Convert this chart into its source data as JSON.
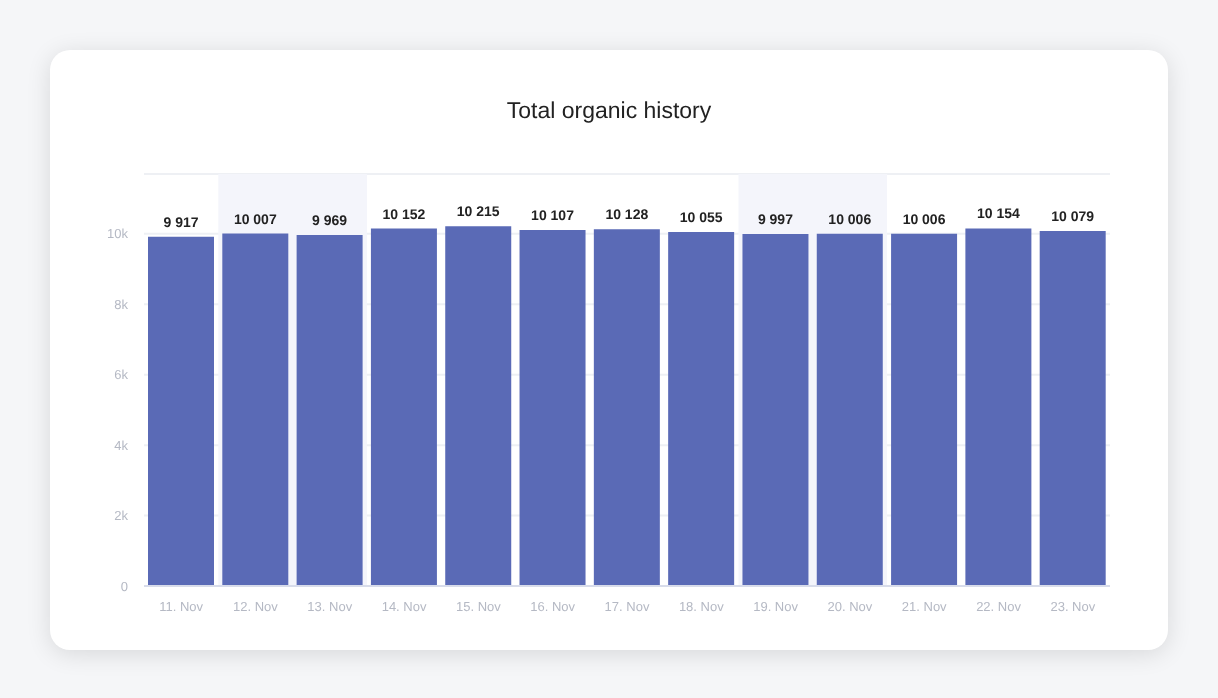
{
  "chart_data": {
    "type": "bar",
    "title": "Total organic history",
    "categories": [
      "11. Nov",
      "12. Nov",
      "13. Nov",
      "14. Nov",
      "15. Nov",
      "16. Nov",
      "17. Nov",
      "18. Nov",
      "19. Nov",
      "20. Nov",
      "21. Nov",
      "22. Nov",
      "23. Nov"
    ],
    "values": [
      9917,
      10007,
      9969,
      10152,
      10215,
      10107,
      10128,
      10055,
      9997,
      10006,
      10006,
      10154,
      10079
    ],
    "value_labels": [
      "9 917",
      "10 007",
      "9 969",
      "10 152",
      "10 215",
      "10 107",
      "10 128",
      "10 055",
      "9 997",
      "10 006",
      "10 006",
      "10 154",
      "10 079"
    ],
    "color": "#5a6ab6",
    "ylim": [
      0,
      11700
    ],
    "yticks": [
      {
        "value": 0,
        "label": "0"
      },
      {
        "value": 2000,
        "label": "2k"
      },
      {
        "value": 4000,
        "label": "4k"
      },
      {
        "value": 6000,
        "label": "6k"
      },
      {
        "value": 8000,
        "label": "8k"
      },
      {
        "value": 10000,
        "label": "10k"
      }
    ],
    "grid": "y",
    "bands": [
      {
        "axis": "x",
        "from": "12. Nov",
        "to": "13. Nov",
        "color": "#f4f5fb"
      },
      {
        "axis": "x",
        "from": "19. Nov",
        "to": "20. Nov",
        "color": "#f4f5fb"
      }
    ]
  }
}
